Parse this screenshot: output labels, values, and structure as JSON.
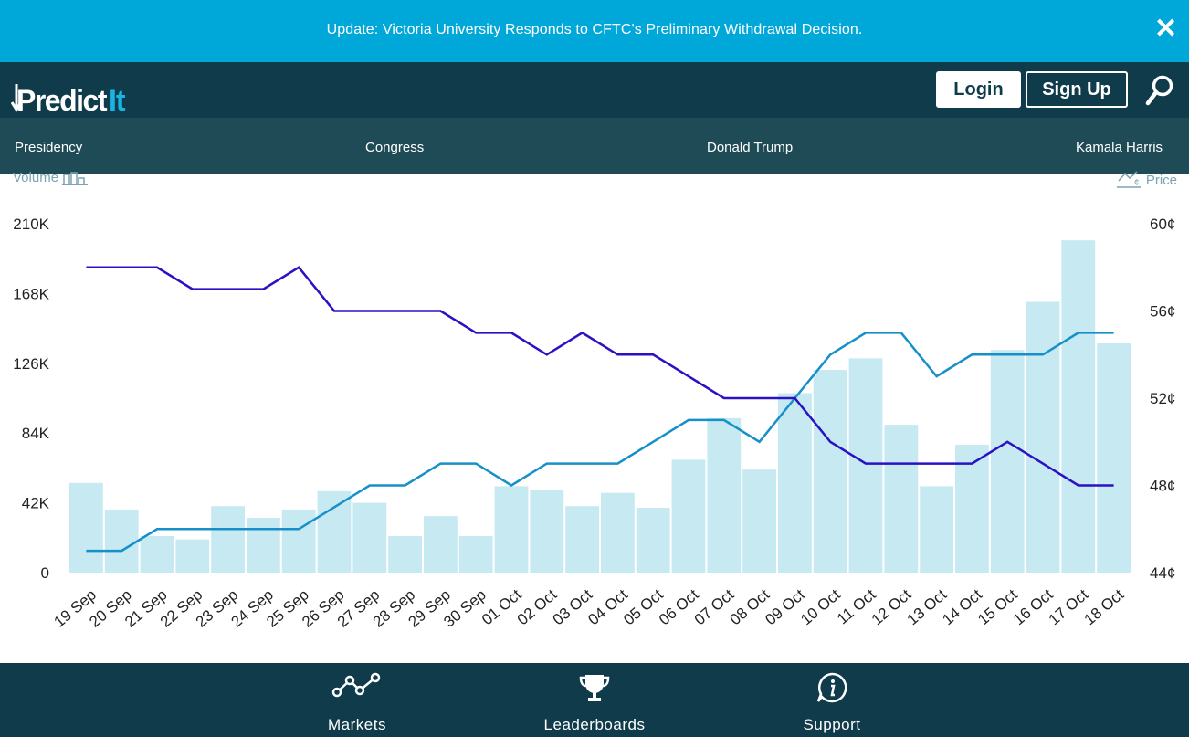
{
  "banner": {
    "text": "Update: Victoria University Responds to CFTC's Preliminary Withdrawal Decision.",
    "close_icon": "close-icon"
  },
  "header": {
    "logo_main": "Predict",
    "logo_accent": "It",
    "login_label": "Login",
    "signup_label": "Sign Up",
    "search_icon": "search-icon"
  },
  "nav": {
    "items": [
      {
        "label": "Presidency"
      },
      {
        "label": "Congress"
      },
      {
        "label": "Donald Trump"
      },
      {
        "label": "Kamala Harris"
      }
    ]
  },
  "chart_controls": {
    "volume_label": "Volume",
    "price_label": "Price"
  },
  "colors": {
    "banner": "#00a7d9",
    "header": "#0f3b4b",
    "nav": "#1f4b57",
    "volume_bar": "#c6e9f2",
    "series_light": "#1790c9",
    "series_dark": "#2a12c4"
  },
  "chart_data": {
    "type": "bar",
    "categories": [
      "19 Sep",
      "20 Sep",
      "21 Sep",
      "22 Sep",
      "23 Sep",
      "24 Sep",
      "25 Sep",
      "26 Sep",
      "27 Sep",
      "28 Sep",
      "29 Sep",
      "30 Sep",
      "01 Oct",
      "02 Oct",
      "03 Oct",
      "04 Oct",
      "05 Oct",
      "06 Oct",
      "07 Oct",
      "08 Oct",
      "09 Oct",
      "10 Oct",
      "11 Oct",
      "12 Oct",
      "13 Oct",
      "14 Oct",
      "15 Oct",
      "16 Oct",
      "17 Oct",
      "18 Oct"
    ],
    "volume": [
      54000,
      38000,
      22000,
      20000,
      40000,
      33000,
      38000,
      49000,
      42000,
      22000,
      34000,
      22000,
      52000,
      50000,
      40000,
      48000,
      39000,
      68000,
      93000,
      62000,
      108000,
      122000,
      129000,
      89000,
      52000,
      77000,
      134000,
      163000,
      200000,
      138000
    ],
    "series": [
      {
        "values": [
          45,
          45,
          46,
          46,
          46,
          46,
          46,
          47,
          48,
          48,
          49,
          49,
          48,
          49,
          49,
          49,
          50,
          51,
          51,
          50,
          52,
          54,
          55,
          55,
          53,
          54,
          54,
          54,
          55,
          55
        ]
      },
      {
        "values": [
          58,
          58,
          58,
          57,
          57,
          57,
          58,
          56,
          56,
          56,
          56,
          55,
          55,
          54,
          55,
          54,
          54,
          53,
          52,
          52,
          52,
          50,
          49,
          49,
          49,
          49,
          50,
          49,
          48,
          48
        ]
      }
    ],
    "y_left_ticks": [
      "0",
      "42K",
      "84K",
      "126K",
      "168K",
      "210K"
    ],
    "y_left_range": [
      0,
      210000
    ],
    "y_right_ticks": [
      "44¢",
      "48¢",
      "52¢",
      "56¢",
      "60¢"
    ],
    "y_right_range": [
      44,
      60
    ],
    "grid": false
  },
  "footer": {
    "items": [
      {
        "label": "Markets",
        "icon": "markets-icon"
      },
      {
        "label": "Leaderboards",
        "icon": "trophy-icon"
      },
      {
        "label": "Support",
        "icon": "info-icon"
      }
    ]
  }
}
